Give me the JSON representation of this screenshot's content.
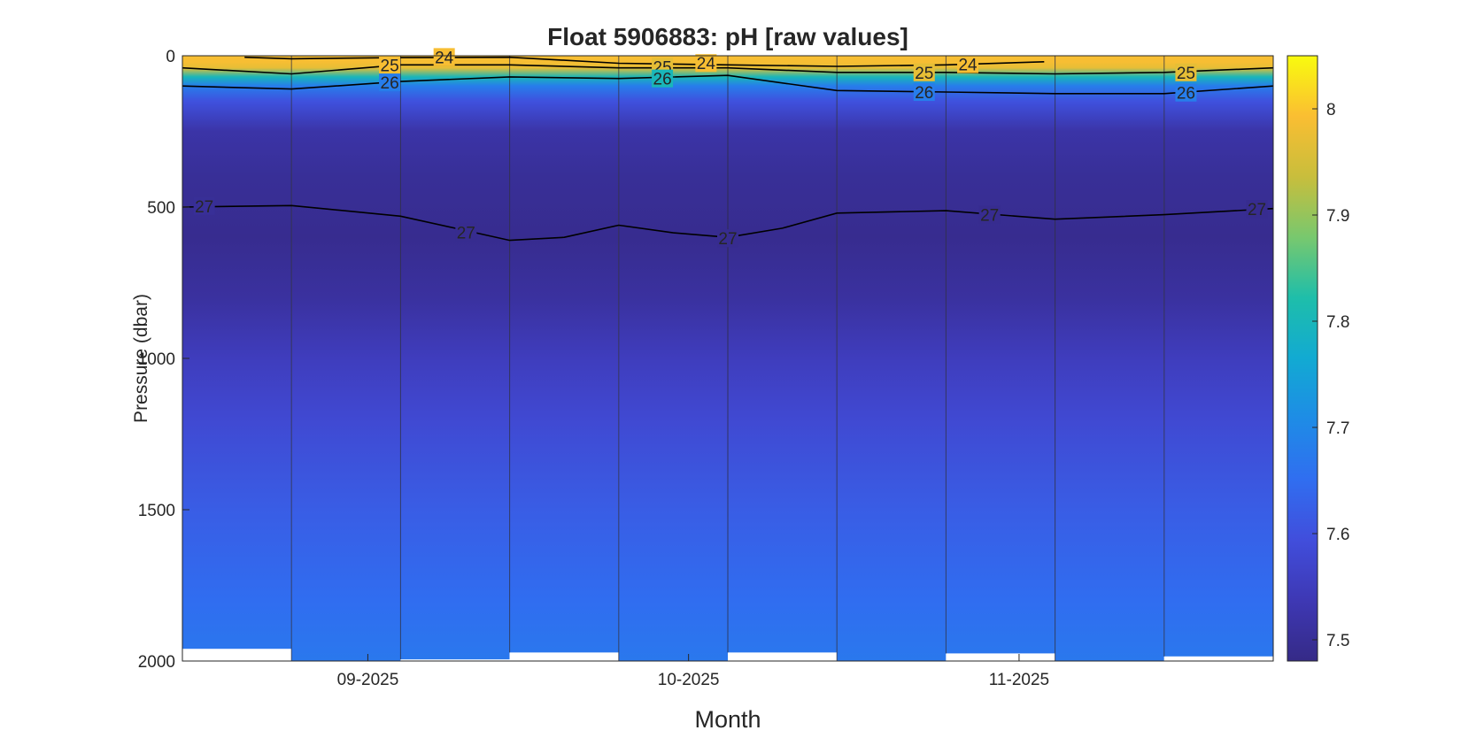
{
  "chart_data": {
    "type": "heatmap",
    "title": "Float 5906883: pH  [raw values]",
    "xlabel": "Month",
    "ylabel": "Pressure (dbar)",
    "ylim": [
      0,
      2000
    ],
    "yticks": [
      0,
      500,
      1000,
      1500,
      2000
    ],
    "yticklabels": [
      "0",
      "500",
      "1000",
      "1500",
      "2000"
    ],
    "xlim": [
      0,
      10
    ],
    "xticks": [
      {
        "x": 1.7,
        "label": "09-2025"
      },
      {
        "x": 4.64,
        "label": "10-2025"
      },
      {
        "x": 7.67,
        "label": "11-2025"
      }
    ],
    "colorbar": {
      "range": [
        7.48,
        8.05
      ],
      "ticks": [
        7.5,
        7.6,
        7.7,
        7.8,
        7.9,
        8.0
      ],
      "ticklabels": [
        "7.5",
        "7.6",
        "7.7",
        "7.8",
        "7.9",
        "8"
      ]
    },
    "profiles": [
      {
        "x0": 0,
        "x1": 1,
        "max_pressure": 1960
      },
      {
        "x0": 1,
        "x1": 2,
        "max_pressure": 2000
      },
      {
        "x0": 2,
        "x1": 3,
        "max_pressure": 1995
      },
      {
        "x0": 3,
        "x1": 4,
        "max_pressure": 1972
      },
      {
        "x0": 4,
        "x1": 5,
        "max_pressure": 2000
      },
      {
        "x0": 5,
        "x1": 6,
        "max_pressure": 1972
      },
      {
        "x0": 6,
        "x1": 7,
        "max_pressure": 2000
      },
      {
        "x0": 7,
        "x1": 8,
        "max_pressure": 1975
      },
      {
        "x0": 8,
        "x1": 9,
        "max_pressure": 2000
      },
      {
        "x0": 9,
        "x1": 10,
        "max_pressure": 1985
      }
    ],
    "ph_profile": [
      {
        "p": 0,
        "ph": 7.99
      },
      {
        "p": 20,
        "ph": 7.99
      },
      {
        "p": 40,
        "ph": 7.97
      },
      {
        "p": 70,
        "ph": 7.8
      },
      {
        "p": 100,
        "ph": 7.68
      },
      {
        "p": 150,
        "ph": 7.6
      },
      {
        "p": 250,
        "ph": 7.52
      },
      {
        "p": 400,
        "ph": 7.5
      },
      {
        "p": 600,
        "ph": 7.49
      },
      {
        "p": 800,
        "ph": 7.51
      },
      {
        "p": 1000,
        "ph": 7.55
      },
      {
        "p": 1200,
        "ph": 7.58
      },
      {
        "p": 1500,
        "ph": 7.62
      },
      {
        "p": 1800,
        "ph": 7.65
      },
      {
        "p": 2000,
        "ph": 7.67
      }
    ],
    "contours": [
      {
        "label": "24",
        "points": [
          [
            0.57,
            5
          ],
          [
            1,
            10
          ],
          [
            2,
            6
          ],
          [
            3,
            5
          ],
          [
            4,
            25
          ],
          [
            5,
            30
          ],
          [
            6,
            35
          ],
          [
            7,
            30
          ],
          [
            7.9,
            20
          ]
        ],
        "label_positions": [
          [
            2.4,
            4
          ],
          [
            4.8,
            24
          ],
          [
            7.2,
            28
          ]
        ]
      },
      {
        "label": "25",
        "points": [
          [
            0,
            40
          ],
          [
            1,
            60
          ],
          [
            2,
            30
          ],
          [
            3,
            30
          ],
          [
            4,
            40
          ],
          [
            5,
            40
          ],
          [
            6,
            55
          ],
          [
            7,
            55
          ],
          [
            8,
            60
          ],
          [
            9,
            55
          ],
          [
            10,
            40
          ]
        ],
        "label_positions": [
          [
            1.9,
            30
          ],
          [
            4.4,
            36
          ],
          [
            6.8,
            55
          ],
          [
            9.2,
            55
          ]
        ]
      },
      {
        "label": "26",
        "points": [
          [
            0,
            100
          ],
          [
            1,
            110
          ],
          [
            2,
            85
          ],
          [
            3,
            70
          ],
          [
            4,
            75
          ],
          [
            5,
            65
          ],
          [
            6,
            115
          ],
          [
            7,
            120
          ],
          [
            8,
            125
          ],
          [
            9,
            125
          ],
          [
            10,
            100
          ]
        ],
        "label_positions": [
          [
            1.9,
            88
          ],
          [
            4.4,
            75
          ],
          [
            6.8,
            120
          ],
          [
            9.2,
            122
          ]
        ]
      },
      {
        "label": "27",
        "points": [
          [
            0,
            500
          ],
          [
            1,
            495
          ],
          [
            2,
            530
          ],
          [
            2.5,
            570
          ],
          [
            3,
            610
          ],
          [
            3.5,
            600
          ],
          [
            4,
            560
          ],
          [
            4.5,
            585
          ],
          [
            5,
            600
          ],
          [
            5.5,
            570
          ],
          [
            6,
            520
          ],
          [
            7,
            512
          ],
          [
            8,
            540
          ],
          [
            9,
            525
          ],
          [
            10,
            505
          ]
        ],
        "label_positions": [
          [
            0.2,
            497
          ],
          [
            2.6,
            583
          ],
          [
            5.0,
            603
          ],
          [
            7.4,
            525
          ],
          [
            9.85,
            506
          ]
        ]
      }
    ]
  },
  "colors": {
    "axis": "#262626",
    "missing": "#ffffff"
  }
}
